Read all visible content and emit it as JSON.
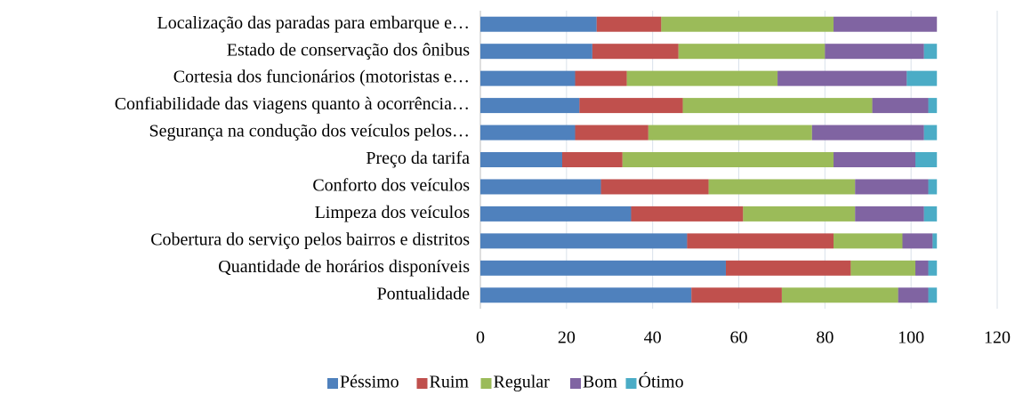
{
  "chart_data": {
    "type": "stacked_hbar",
    "categories": [
      "Localização das paradas para embarque e…",
      "Estado de conservação dos ônibus",
      "Cortesia dos funcionários (motoristas e…",
      "Confiabilidade das viagens quanto à ocorrência…",
      "Segurança na condução dos veículos pelos…",
      "Preço da tarifa",
      "Conforto dos veículos",
      "Limpeza dos veículos",
      "Cobertura do serviço pelos bairros e distritos",
      "Quantidade de horários disponíveis",
      "Pontualidade"
    ],
    "series": [
      {
        "name": "Péssimo",
        "color": "#4f81bd",
        "values": [
          27,
          26,
          22,
          23,
          22,
          19,
          28,
          35,
          48,
          57,
          49
        ]
      },
      {
        "name": "Ruim",
        "color": "#c0504d",
        "values": [
          15,
          20,
          12,
          24,
          17,
          14,
          25,
          26,
          34,
          29,
          21
        ]
      },
      {
        "name": "Regular",
        "color": "#9bbb59",
        "values": [
          40,
          34,
          35,
          44,
          38,
          49,
          34,
          26,
          16,
          15,
          27
        ]
      },
      {
        "name": "Bom",
        "color": "#8064a2",
        "values": [
          24,
          23,
          30,
          13,
          26,
          19,
          17,
          16,
          7,
          3,
          7
        ]
      },
      {
        "name": "Ótimo",
        "color": "#4bacc6",
        "values": [
          0,
          3,
          7,
          2,
          3,
          5,
          2,
          3,
          1,
          2,
          2
        ]
      }
    ],
    "xlim": [
      0,
      120
    ],
    "xticks": [
      0,
      20,
      40,
      60,
      80,
      100,
      120
    ],
    "grid": true,
    "legend": "bottom"
  }
}
